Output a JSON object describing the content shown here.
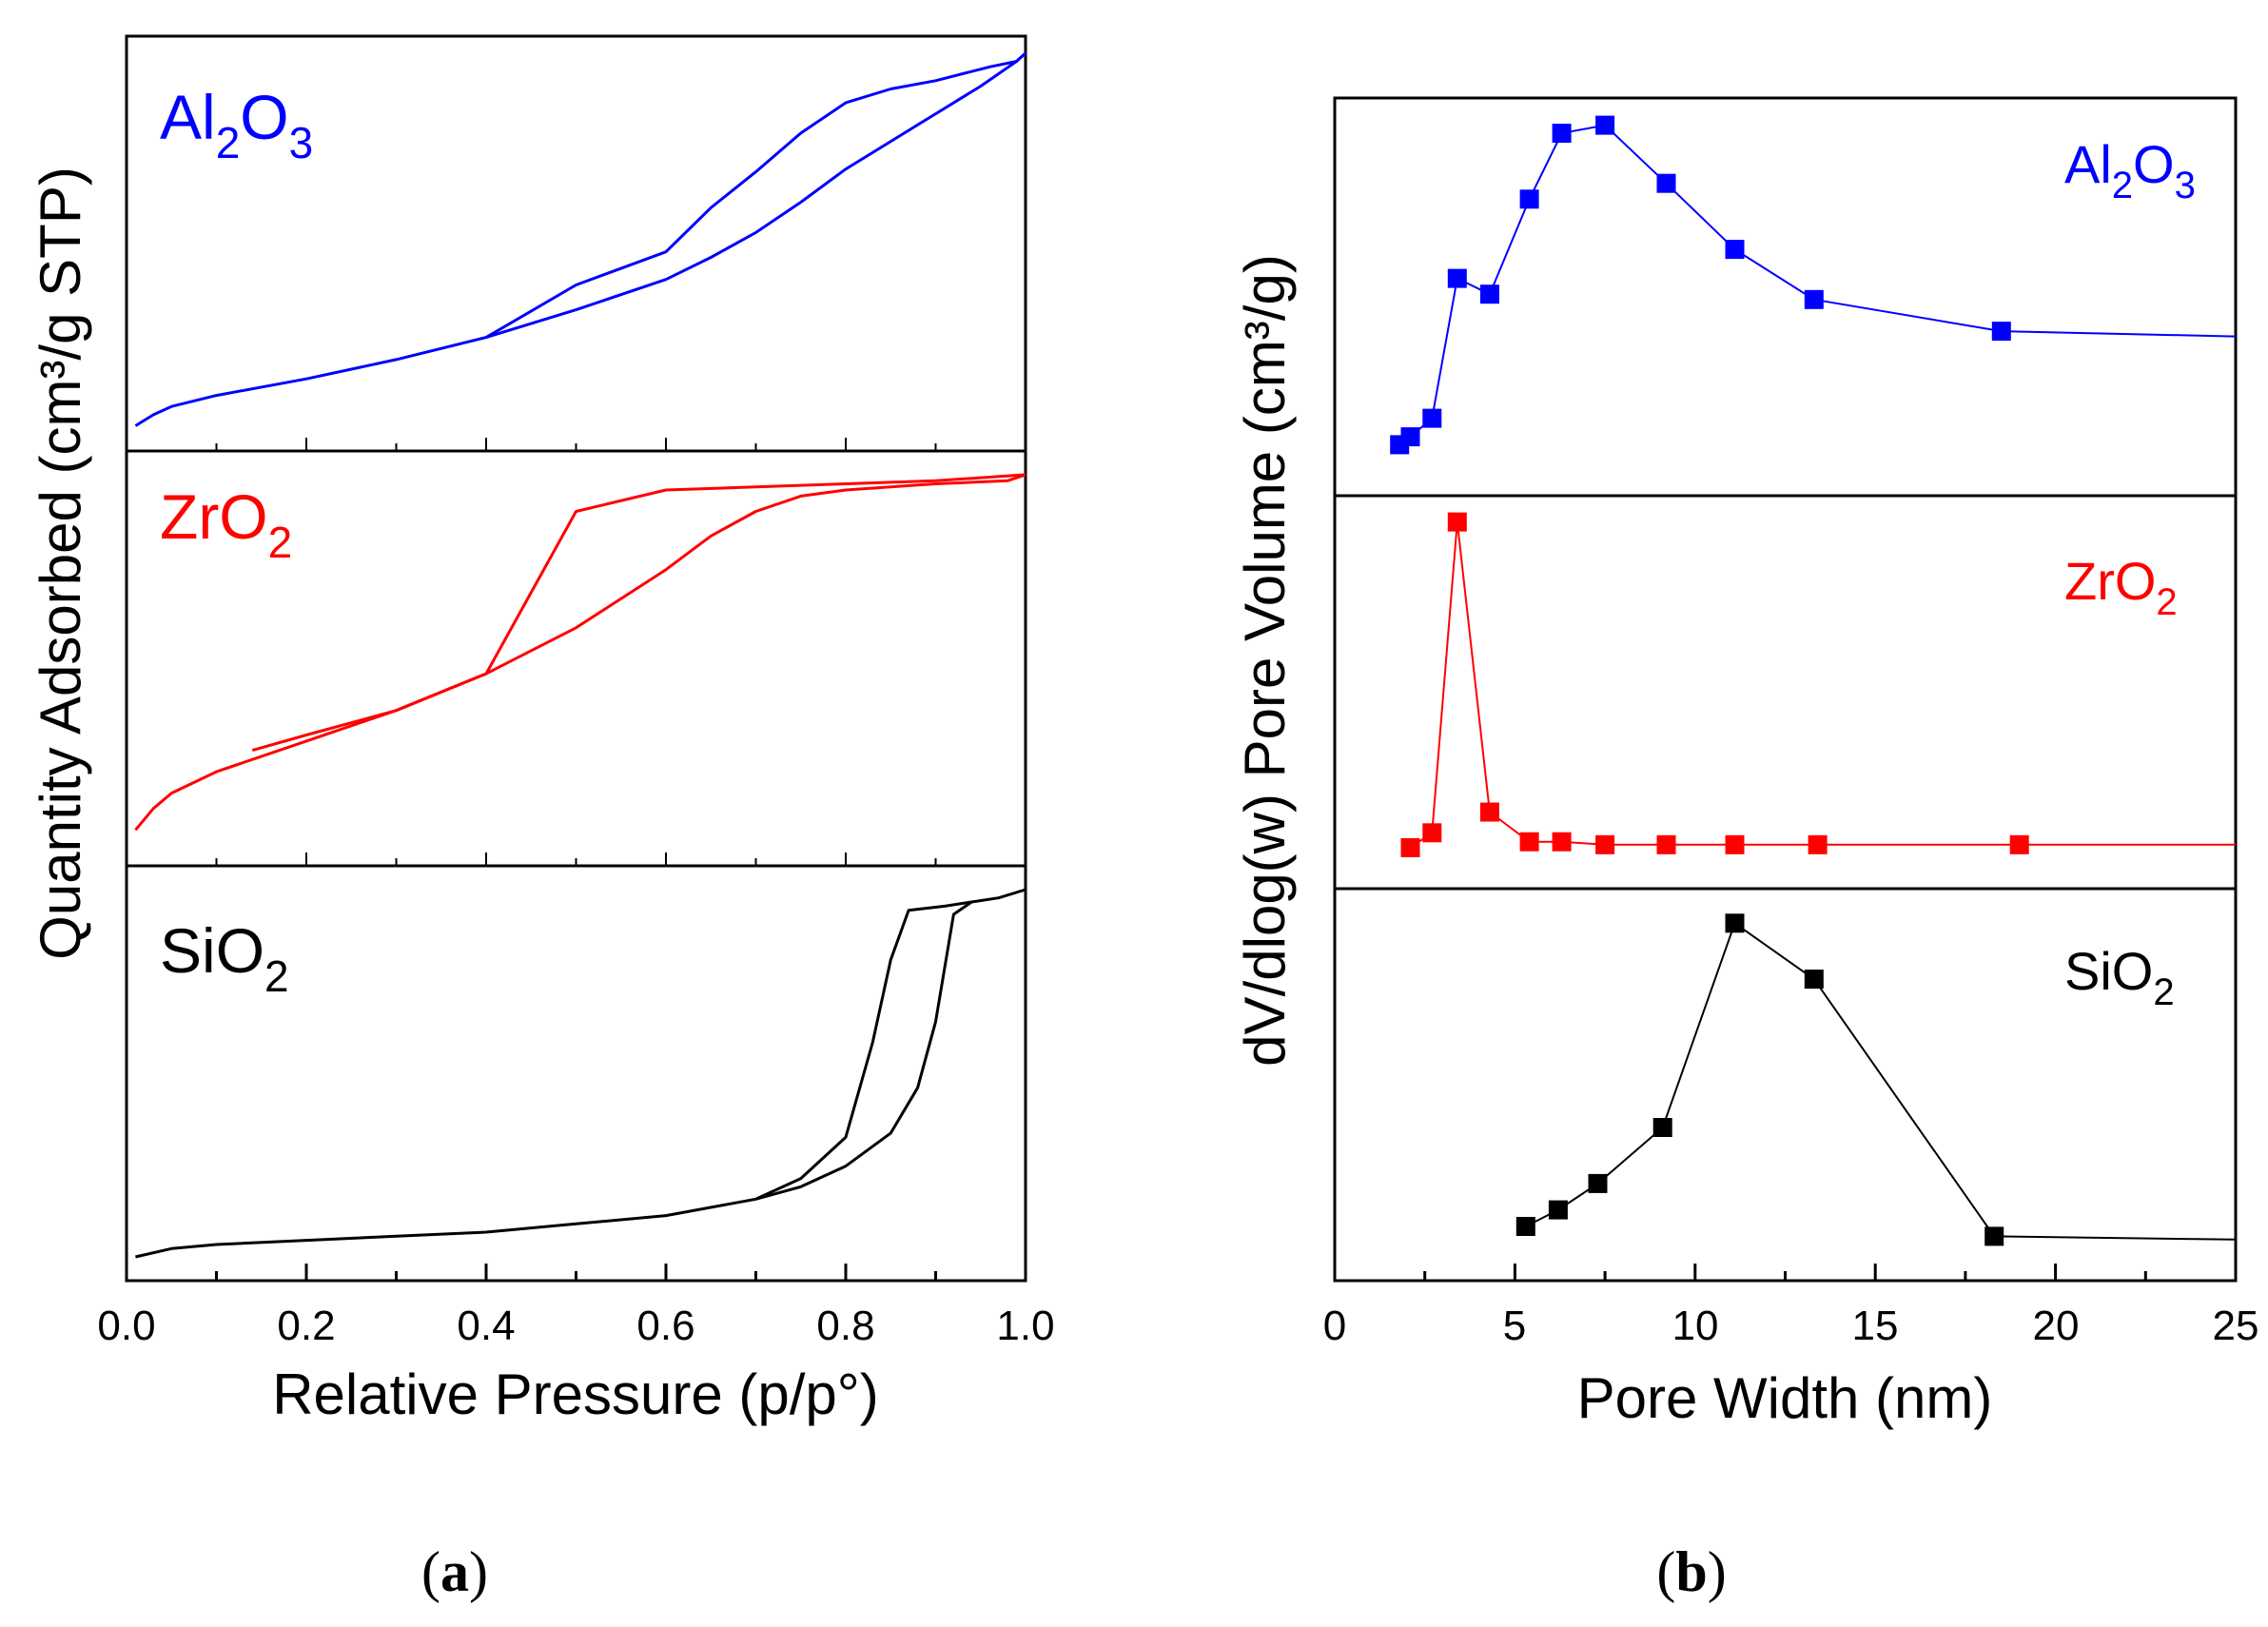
{
  "chart_data": [
    {
      "type": "line",
      "panel": "a",
      "caption_label": "a",
      "xlabel": "Relative Pressure (p/p°)",
      "ylabel": "Quantity Adsorbed (cm³/g STP)",
      "xlim": [
        0,
        1
      ],
      "x_ticks": [
        "0.0",
        "0.2",
        "0.4",
        "0.6",
        "0.8",
        "1.0"
      ],
      "series": [
        {
          "name": "Al2O3",
          "label_main": "Al",
          "sub1": "2",
          "mid": "O",
          "sub2": "3",
          "color": "#0000ff",
          "adsorption": [
            [
              0.01,
              0.05
            ],
            [
              0.03,
              0.09
            ],
            [
              0.05,
              0.12
            ],
            [
              0.1,
              0.16
            ],
            [
              0.2,
              0.22
            ],
            [
              0.3,
              0.29
            ],
            [
              0.4,
              0.37
            ],
            [
              0.5,
              0.47
            ],
            [
              0.6,
              0.58
            ],
            [
              0.65,
              0.66
            ],
            [
              0.7,
              0.75
            ],
            [
              0.75,
              0.86
            ],
            [
              0.8,
              0.98
            ],
            [
              0.85,
              1.08
            ],
            [
              0.9,
              1.18
            ],
            [
              0.95,
              1.28
            ],
            [
              0.99,
              1.37
            ],
            [
              1.0,
              1.4
            ]
          ],
          "desorption": [
            [
              1.0,
              1.4
            ],
            [
              0.99,
              1.37
            ],
            [
              0.96,
              1.35
            ],
            [
              0.9,
              1.3
            ],
            [
              0.85,
              1.27
            ],
            [
              0.8,
              1.22
            ],
            [
              0.75,
              1.11
            ],
            [
              0.7,
              0.97
            ],
            [
              0.65,
              0.84
            ],
            [
              0.6,
              0.68
            ],
            [
              0.5,
              0.56
            ],
            [
              0.4,
              0.37
            ]
          ]
        },
        {
          "name": "ZrO2",
          "label_main": "Zr",
          "sub1": "",
          "mid": "O",
          "sub2": "2",
          "color": "#ff0000",
          "adsorption": [
            [
              0.01,
              0.08
            ],
            [
              0.03,
              0.15
            ],
            [
              0.05,
              0.2
            ],
            [
              0.1,
              0.27
            ],
            [
              0.2,
              0.37
            ],
            [
              0.3,
              0.47
            ],
            [
              0.4,
              0.59
            ],
            [
              0.5,
              0.74
            ],
            [
              0.6,
              0.93
            ],
            [
              0.65,
              1.04
            ],
            [
              0.7,
              1.12
            ],
            [
              0.75,
              1.17
            ],
            [
              0.8,
              1.19
            ],
            [
              0.9,
              1.21
            ],
            [
              0.98,
              1.22
            ],
            [
              1.0,
              1.24
            ]
          ],
          "desorption": [
            [
              1.0,
              1.24
            ],
            [
              0.9,
              1.22
            ],
            [
              0.8,
              1.21
            ],
            [
              0.7,
              1.2
            ],
            [
              0.6,
              1.19
            ],
            [
              0.5,
              1.12
            ],
            [
              0.4,
              0.59
            ],
            [
              0.3,
              0.47
            ],
            [
              0.2,
              0.39
            ],
            [
              0.14,
              0.34
            ]
          ]
        },
        {
          "name": "SiO2",
          "label_main": "Si",
          "sub1": "",
          "mid": "O",
          "sub2": "2",
          "color": "#000000",
          "adsorption": [
            [
              0.01,
              0.03
            ],
            [
              0.05,
              0.05
            ],
            [
              0.1,
              0.06
            ],
            [
              0.2,
              0.07
            ],
            [
              0.3,
              0.08
            ],
            [
              0.4,
              0.09
            ],
            [
              0.5,
              0.11
            ],
            [
              0.6,
              0.13
            ],
            [
              0.7,
              0.17
            ],
            [
              0.75,
              0.2
            ],
            [
              0.8,
              0.25
            ],
            [
              0.85,
              0.33
            ],
            [
              0.88,
              0.44
            ],
            [
              0.9,
              0.6
            ],
            [
              0.92,
              0.86
            ],
            [
              0.94,
              0.89
            ],
            [
              0.97,
              0.9
            ],
            [
              1.0,
              0.92
            ]
          ],
          "desorption": [
            [
              0.94,
              0.89
            ],
            [
              0.91,
              0.88
            ],
            [
              0.87,
              0.87
            ],
            [
              0.85,
              0.75
            ],
            [
              0.83,
              0.55
            ],
            [
              0.8,
              0.32
            ],
            [
              0.75,
              0.22
            ],
            [
              0.7,
              0.17
            ]
          ]
        }
      ]
    },
    {
      "type": "line",
      "panel": "b",
      "caption_label": "b",
      "xlabel": "Pore Width (nm)",
      "ylabel": "dV/dlog(w) Pore Volume (cm³/g)",
      "xlim": [
        0,
        25
      ],
      "x_ticks": [
        "0",
        "5",
        "10",
        "15",
        "20",
        "25"
      ],
      "series": [
        {
          "name": "Al2O3",
          "label_main": "Al",
          "sub1": "2",
          "mid": "O",
          "sub2": "3",
          "color": "#0000ff",
          "points": [
            [
              1.8,
              0.15
            ],
            [
              2.1,
              0.18
            ],
            [
              2.7,
              0.25
            ],
            [
              3.4,
              0.78
            ],
            [
              4.3,
              0.72
            ],
            [
              5.4,
              1.08
            ],
            [
              6.3,
              1.33
            ],
            [
              7.5,
              1.36
            ],
            [
              9.2,
              1.14
            ],
            [
              11.1,
              0.89
            ],
            [
              13.3,
              0.7
            ],
            [
              18.5,
              0.58
            ]
          ],
          "tail": [
            25,
            0.56
          ]
        },
        {
          "name": "ZrO2",
          "label_main": "Zr",
          "sub1": "",
          "mid": "O",
          "sub2": "2",
          "color": "#ff0000",
          "points": [
            [
              2.1,
              0.1
            ],
            [
              2.7,
              0.15
            ],
            [
              3.4,
              1.2
            ],
            [
              4.3,
              0.22
            ],
            [
              5.4,
              0.12
            ],
            [
              6.3,
              0.12
            ],
            [
              7.5,
              0.11
            ],
            [
              9.2,
              0.11
            ],
            [
              11.1,
              0.11
            ],
            [
              13.4,
              0.11
            ],
            [
              19.0,
              0.11
            ]
          ],
          "tail": [
            25,
            0.11
          ]
        },
        {
          "name": "SiO2",
          "label_main": "Si",
          "sub1": "",
          "mid": "O",
          "sub2": "2",
          "color": "#000000",
          "points": [
            [
              5.3,
              0.13
            ],
            [
              6.2,
              0.18
            ],
            [
              7.3,
              0.26
            ],
            [
              9.1,
              0.43
            ],
            [
              11.1,
              1.05
            ],
            [
              13.3,
              0.88
            ],
            [
              18.3,
              0.1
            ]
          ],
          "tail": [
            25,
            0.09
          ]
        }
      ]
    }
  ]
}
